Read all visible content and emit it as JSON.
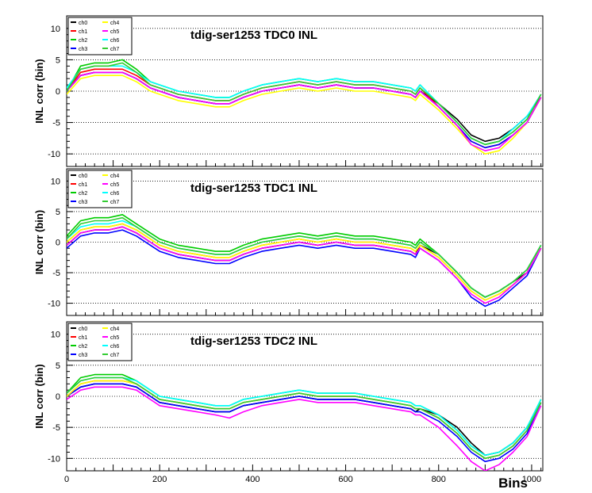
{
  "chart_data": {
    "type": "line",
    "xlabel": "Bins",
    "ylabel": "INL corr (bin)",
    "xlim": [
      0,
      1024
    ],
    "ylim": [
      -12,
      12
    ],
    "x_ticks": [
      0,
      200,
      400,
      600,
      800,
      1000
    ],
    "y_ticks": [
      -10,
      -5,
      0,
      5,
      10
    ],
    "grid": "horizontal dotted",
    "legend_placement": "top-left",
    "colors": {
      "ch0": "#000000",
      "ch1": "#ff0000",
      "ch2": "#00cc00",
      "ch3": "#0000ff",
      "ch4": "#ffff00",
      "ch5": "#ff00ff",
      "ch6": "#00ffff",
      "ch7": "#33cc33"
    },
    "x": [
      0,
      30,
      60,
      90,
      120,
      150,
      180,
      200,
      240,
      280,
      320,
      350,
      380,
      420,
      460,
      500,
      540,
      580,
      620,
      660,
      700,
      740,
      750,
      760,
      800,
      840,
      870,
      900,
      930,
      960,
      990,
      1020
    ],
    "panels": [
      {
        "title": "tdig-ser1253 TDC0 INL",
        "legend": [
          "ch0",
          "ch1",
          "ch2",
          "ch3",
          "ch4",
          "ch5",
          "ch6",
          "ch7"
        ],
        "series": [
          {
            "name": "ch0",
            "values": [
              0,
              2.5,
              3,
              3,
              3,
              2,
              0.5,
              0,
              -1,
              -1.5,
              -2,
              -2,
              -1,
              0,
              0.5,
              1,
              0.5,
              1,
              0.5,
              0.5,
              0,
              -0.5,
              -1,
              0,
              -2,
              -4.5,
              -7,
              -8,
              -7.5,
              -6,
              -4,
              -1
            ]
          },
          {
            "name": "ch1",
            "values": [
              0,
              3,
              3.5,
              3.5,
              3.5,
              2.5,
              1,
              0.5,
              -0.5,
              -1,
              -1.5,
              -1.5,
              -0.5,
              0.5,
              1,
              1.5,
              1,
              1.5,
              1,
              1,
              0.5,
              0,
              -0.5,
              0.5,
              -2.5,
              -5.5,
              -8,
              -9,
              -8.5,
              -7,
              -5,
              -1
            ]
          },
          {
            "name": "ch2",
            "values": [
              0,
              4,
              4.5,
              4.5,
              5,
              3.5,
              1.5,
              1,
              0,
              -0.5,
              -1,
              -1,
              0,
              1,
              1.5,
              2,
              1.5,
              2,
              1.5,
              1.5,
              1,
              0.5,
              0,
              1,
              -2,
              -5,
              -7.5,
              -8.5,
              -8,
              -6.5,
              -4.5,
              -0.5
            ]
          },
          {
            "name": "ch3",
            "values": [
              0,
              2.5,
              3,
              3,
              3,
              2,
              0.5,
              0,
              -1,
              -1.5,
              -2,
              -2,
              -1,
              0,
              0.5,
              1,
              0.5,
              1,
              0.5,
              0.5,
              0,
              -0.5,
              -1,
              0,
              -2.5,
              -5.5,
              -8,
              -9,
              -8.5,
              -7,
              -5,
              -1
            ]
          },
          {
            "name": "ch4",
            "values": [
              -0.5,
              2,
              2.5,
              2.5,
              2.5,
              1.5,
              0,
              -0.5,
              -1.5,
              -2,
              -2.5,
              -2.5,
              -1.5,
              -0.5,
              0,
              0.5,
              0,
              0.5,
              0,
              0,
              -0.5,
              -1,
              -1.5,
              -0.5,
              -3,
              -6,
              -8.5,
              -10,
              -9.5,
              -7.5,
              -5,
              -1
            ]
          },
          {
            "name": "ch5",
            "values": [
              0,
              2.5,
              3,
              3,
              3,
              2,
              0.5,
              0,
              -1,
              -1.5,
              -2,
              -2,
              -1,
              0,
              0.5,
              1,
              0.5,
              1,
              0.5,
              0.5,
              0,
              -0.5,
              -1,
              0,
              -2.5,
              -5.5,
              -8.5,
              -9.5,
              -9,
              -7,
              -5,
              -1
            ]
          },
          {
            "name": "ch6",
            "values": [
              0.5,
              3.5,
              4,
              4,
              4,
              3,
              1.5,
              1,
              0,
              -0.5,
              -1,
              -1,
              0,
              1,
              1.5,
              2,
              1.5,
              2,
              1.5,
              1.5,
              1,
              0.5,
              0,
              1,
              -2,
              -5,
              -7.5,
              -8.5,
              -8,
              -6,
              -4,
              -0.5
            ]
          },
          {
            "name": "ch7",
            "values": [
              0,
              3.5,
              4,
              4,
              4.5,
              3,
              1,
              0.5,
              -0.5,
              -1,
              -1.5,
              -1.5,
              -0.5,
              0.5,
              1,
              1.5,
              1,
              1.5,
              1,
              1,
              0.5,
              0,
              -0.5,
              0.5,
              -2,
              -5,
              -7.5,
              -8.5,
              -8,
              -6.5,
              -4.5,
              -0.5
            ]
          }
        ]
      },
      {
        "title": "tdig-ser1253 TDC1 INL",
        "legend": [
          "ch0",
          "ch1",
          "ch2",
          "ch3",
          "ch4",
          "ch5",
          "ch6",
          "ch7"
        ],
        "series": [
          {
            "name": "ch0",
            "values": [
              -0.5,
              1.5,
              2,
              2,
              2.5,
              1.5,
              0,
              -1,
              -2,
              -2.5,
              -3,
              -3,
              -2,
              -1,
              -0.5,
              0,
              -0.5,
              0,
              -0.5,
              -0.5,
              -1,
              -1.5,
              -2,
              -0.5,
              -2,
              -5,
              -7.5,
              -9,
              -8,
              -6.5,
              -5,
              -1
            ]
          },
          {
            "name": "ch1",
            "values": [
              0,
              2,
              2.5,
              2.5,
              3,
              2,
              0.5,
              -0.5,
              -1.5,
              -2,
              -2.5,
              -2.5,
              -1.5,
              -0.5,
              0,
              0.5,
              0,
              0.5,
              0,
              0,
              -0.5,
              -1,
              -1.5,
              -0.5,
              -2.5,
              -5.5,
              -8,
              -9.5,
              -8.5,
              -7,
              -5,
              -1
            ]
          },
          {
            "name": "ch2",
            "values": [
              1,
              3.5,
              4,
              4,
              4.5,
              3,
              1.5,
              0.5,
              -0.5,
              -1,
              -1.5,
              -1.5,
              -0.5,
              0.5,
              1,
              1.5,
              1,
              1.5,
              1,
              1,
              0.5,
              0,
              -0.5,
              0.5,
              -2,
              -5,
              -7.5,
              -9,
              -8,
              -6.5,
              -4.5,
              -0.5
            ]
          },
          {
            "name": "ch3",
            "values": [
              -1,
              1,
              1.5,
              1.5,
              2,
              1,
              -0.5,
              -1.5,
              -2.5,
              -3,
              -3.5,
              -3.5,
              -2.5,
              -1.5,
              -1,
              -0.5,
              -1,
              -0.5,
              -1,
              -1,
              -1.5,
              -2,
              -2.5,
              -1,
              -3,
              -6,
              -9,
              -10.5,
              -9.5,
              -7.5,
              -5.5,
              -1
            ]
          },
          {
            "name": "ch4",
            "values": [
              0,
              2,
              2.5,
              2.5,
              3,
              2,
              0.5,
              -0.5,
              -1.5,
              -2,
              -2.5,
              -2.5,
              -1.5,
              -0.5,
              0,
              0.5,
              0,
              0.5,
              0,
              0,
              -0.5,
              -1,
              -1.5,
              -0.5,
              -2.5,
              -5.5,
              -8,
              -9.5,
              -8.5,
              -7,
              -5,
              -1
            ]
          },
          {
            "name": "ch5",
            "values": [
              -0.5,
              1.5,
              2,
              2,
              2.5,
              1.5,
              0,
              -1,
              -2,
              -2.5,
              -3,
              -3,
              -2,
              -1,
              -0.5,
              0,
              -0.5,
              0,
              -0.5,
              -0.5,
              -1,
              -1.5,
              -2,
              -1,
              -3,
              -6,
              -8.5,
              -10,
              -9,
              -7,
              -5,
              -1
            ]
          },
          {
            "name": "ch6",
            "values": [
              0.5,
              2.5,
              3,
              3,
              3.5,
              2.5,
              1,
              0,
              -1,
              -1.5,
              -2,
              -2,
              -1,
              0,
              0.5,
              1,
              0.5,
              1,
              0.5,
              0.5,
              0,
              -0.5,
              -1,
              0,
              -2,
              -5,
              -7.5,
              -9,
              -8,
              -6.5,
              -4.5,
              -0.5
            ]
          },
          {
            "name": "ch7",
            "values": [
              0.5,
              3,
              3.5,
              3.5,
              4,
              2.5,
              1,
              0,
              -1,
              -1.5,
              -2,
              -2,
              -1,
              0,
              0.5,
              1,
              0.5,
              1,
              0.5,
              0.5,
              0,
              -0.5,
              -1,
              0,
              -2,
              -5,
              -7.5,
              -9,
              -8,
              -6.5,
              -4.5,
              -0.5
            ]
          }
        ]
      },
      {
        "title": "tdig-ser1253 TDC2 INL",
        "legend": [
          "ch0",
          "ch1",
          "ch2",
          "ch3",
          "ch4",
          "ch5",
          "ch6",
          "ch7"
        ],
        "series": [
          {
            "name": "ch0",
            "values": [
              0,
              1.5,
              2,
              2,
              2,
              1.5,
              0,
              -1,
              -1.5,
              -2,
              -2.5,
              -2.5,
              -1.5,
              -1,
              -0.5,
              0,
              -0.5,
              -0.5,
              -0.5,
              -1,
              -1.5,
              -2,
              -2.5,
              -2,
              -3,
              -5,
              -7.5,
              -9.5,
              -9,
              -7.5,
              -5,
              -1
            ]
          },
          {
            "name": "ch1",
            "values": [
              0,
              2,
              2.5,
              2.5,
              2.5,
              2,
              0.5,
              -0.5,
              -1,
              -1.5,
              -2,
              -2,
              -1,
              -0.5,
              0,
              0.5,
              0,
              0,
              0,
              -0.5,
              -1,
              -1.5,
              -2,
              -2,
              -3.5,
              -6,
              -8.5,
              -10,
              -9.5,
              -8,
              -5.5,
              -1
            ]
          },
          {
            "name": "ch2",
            "values": [
              0.5,
              3,
              3.5,
              3.5,
              3.5,
              2.5,
              1,
              0,
              -0.5,
              -1,
              -1.5,
              -1.5,
              -0.5,
              0,
              0.5,
              1,
              0.5,
              0.5,
              0.5,
              0,
              -0.5,
              -1,
              -1.5,
              -1.5,
              -3,
              -5.5,
              -8,
              -9.5,
              -9,
              -7.5,
              -5,
              -0.5
            ]
          },
          {
            "name": "ch3",
            "values": [
              0,
              1.5,
              2,
              2,
              2,
              1.5,
              0,
              -1,
              -1.5,
              -2,
              -2.5,
              -2.5,
              -1.5,
              -1,
              -0.5,
              0,
              -0.5,
              -0.5,
              -0.5,
              -1,
              -1.5,
              -2,
              -2.5,
              -2.5,
              -4,
              -6.5,
              -9,
              -10.5,
              -10,
              -8.5,
              -6,
              -1
            ]
          },
          {
            "name": "ch4",
            "values": [
              0,
              2,
              2.5,
              2.5,
              2.5,
              2,
              0.5,
              -0.5,
              -1,
              -1.5,
              -2,
              -2,
              -1,
              -0.5,
              0,
              0.5,
              0,
              0,
              0,
              -0.5,
              -1,
              -1.5,
              -2,
              -2,
              -3.5,
              -6,
              -8.5,
              -10,
              -9.5,
              -8,
              -5.5,
              -1
            ]
          },
          {
            "name": "ch5",
            "values": [
              -0.5,
              1,
              1.5,
              1.5,
              1.5,
              1,
              -0.5,
              -1.5,
              -2,
              -2.5,
              -3,
              -3.5,
              -2.5,
              -1.5,
              -1,
              -0.5,
              -1,
              -1,
              -1,
              -1.5,
              -2,
              -2.5,
              -3,
              -3,
              -5,
              -8,
              -10.5,
              -12,
              -11,
              -9,
              -6.5,
              -1.5
            ]
          },
          {
            "name": "ch6",
            "values": [
              0.5,
              2.5,
              3,
              3,
              3,
              2.5,
              1,
              0,
              -0.5,
              -1,
              -1.5,
              -1.5,
              -0.5,
              0,
              0.5,
              1,
              0.5,
              0.5,
              0.5,
              0,
              -0.5,
              -1,
              -1.5,
              -1.5,
              -3,
              -5.5,
              -8,
              -9.5,
              -9,
              -7.5,
              -5,
              -0.5
            ]
          },
          {
            "name": "ch7",
            "values": [
              0.5,
              2.5,
              3,
              3,
              3,
              2,
              0.5,
              -0.5,
              -1,
              -1.5,
              -2,
              -2,
              -1,
              -0.5,
              0,
              0.5,
              0,
              0,
              0,
              -0.5,
              -1,
              -1.5,
              -2,
              -2,
              -3.5,
              -6,
              -8.5,
              -10,
              -9.5,
              -8,
              -5.5,
              -1
            ]
          }
        ]
      }
    ]
  }
}
